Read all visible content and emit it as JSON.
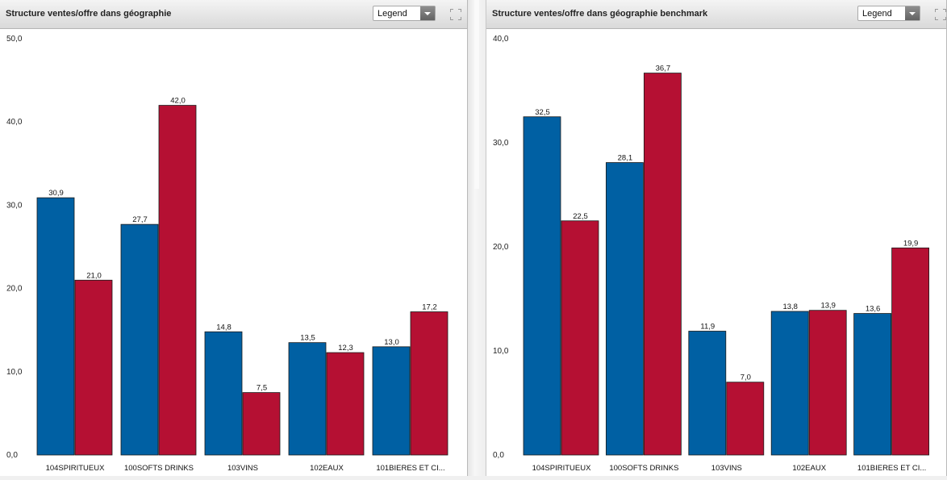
{
  "colors": {
    "series_a": "#0060a3",
    "series_b": "#b51033"
  },
  "panels": [
    {
      "title": "Structure ventes/offre dans géographie",
      "legend_label": "Legend",
      "expand_icon": "expand-icon"
    },
    {
      "title": "Structure ventes/offre dans géographie benchmark",
      "legend_label": "Legend",
      "expand_icon": "expand-icon"
    }
  ],
  "chart_data": [
    {
      "type": "bar",
      "categories": [
        "104SPIRITUEUX",
        "100SOFTS DRINKS",
        "103VINS",
        "102EAUX",
        "101BIERES ET CI..."
      ],
      "series": [
        {
          "values": [
            30.9,
            27.7,
            14.8,
            13.5,
            13.0
          ],
          "labels": [
            "30,9",
            "27,7",
            "14,8",
            "13,5",
            "13,0"
          ]
        },
        {
          "values": [
            21.0,
            42.0,
            7.5,
            12.3,
            17.2
          ],
          "labels": [
            "21,0",
            "42,0",
            "7,5",
            "12,3",
            "17,2"
          ]
        }
      ],
      "ylim": [
        0,
        50
      ],
      "yticks": [
        "0,0",
        "10,0",
        "20,0",
        "30,0",
        "40,0",
        "50,0"
      ],
      "grid": false,
      "title": "",
      "xlabel": "",
      "ylabel": ""
    },
    {
      "type": "bar",
      "categories": [
        "104SPIRITUEUX",
        "100SOFTS DRINKS",
        "103VINS",
        "102EAUX",
        "101BIERES ET CI..."
      ],
      "series": [
        {
          "values": [
            32.5,
            28.1,
            11.9,
            13.8,
            13.6
          ],
          "labels": [
            "32,5",
            "28,1",
            "11,9",
            "13,8",
            "13,6"
          ]
        },
        {
          "values": [
            22.5,
            36.7,
            7.0,
            13.9,
            19.9
          ],
          "labels": [
            "22,5",
            "36,7",
            "7,0",
            "13,9",
            "19,9"
          ]
        }
      ],
      "ylim": [
        0,
        40
      ],
      "yticks": [
        "0,0",
        "10,0",
        "20,0",
        "30,0",
        "40,0"
      ],
      "grid": false,
      "title": "",
      "xlabel": "",
      "ylabel": ""
    }
  ]
}
